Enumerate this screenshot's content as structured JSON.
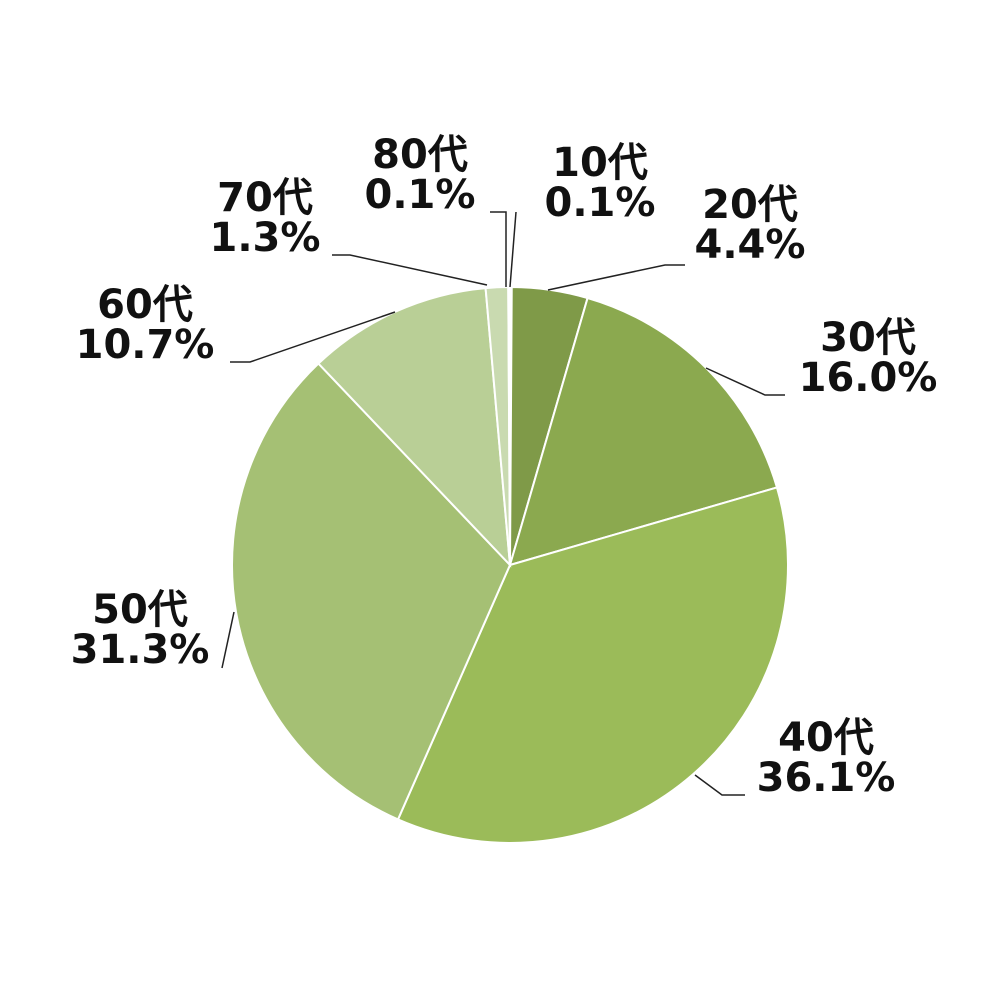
{
  "chart_data": {
    "type": "pie",
    "categories": [
      "10代",
      "20代",
      "30代",
      "40代",
      "50代",
      "60代",
      "70代",
      "80代"
    ],
    "values": [
      0.1,
      4.4,
      16.0,
      36.1,
      31.3,
      10.7,
      1.3,
      0.1
    ],
    "value_labels": [
      "0.1%",
      "4.4%",
      "16.0%",
      "36.1%",
      "31.3%",
      "10.7%",
      "1.3%",
      "0.1%"
    ],
    "colors": [
      "#6f8a3c",
      "#7f9a48",
      "#8ba94f",
      "#9bbb59",
      "#a5c074",
      "#b9cf96",
      "#c9dab0",
      "#d7e4c4"
    ]
  }
}
